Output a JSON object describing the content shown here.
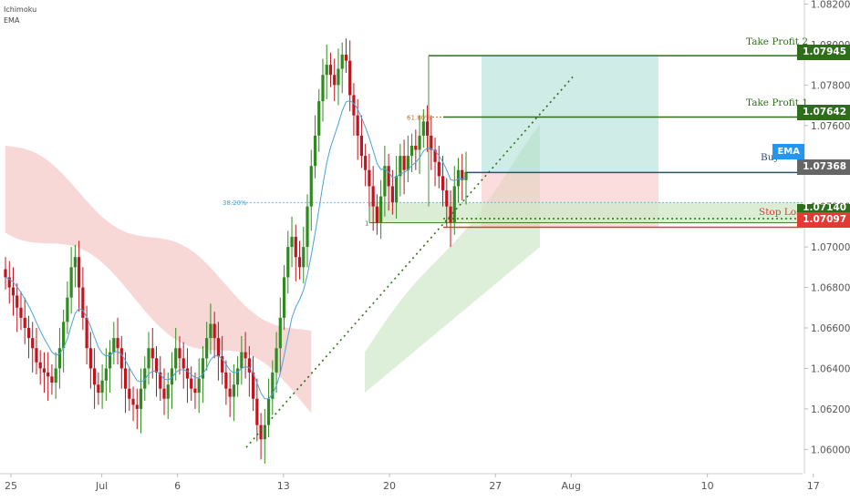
{
  "legend": {
    "ichimoku": "Ichimoku",
    "ema": "EMA"
  },
  "colors": {
    "up": "#2e8b1e",
    "down": "#c0141e",
    "ema": "#4aa3d8",
    "cloud_bear": "#f6c9c9",
    "cloud_bull": "#cfe8c7",
    "tp": "#2e6e1a",
    "buy": "#2c4f7c",
    "sl": "#e53935",
    "profit_zone": "#a7dcd2",
    "loss_zone": "#f8c7c7",
    "trend": "#2e6e1a",
    "axis_text": "#555555"
  },
  "chart_data": {
    "type": "candlestick",
    "y_ticks": [
      "1.08200",
      "1.08000",
      "1.07800",
      "1.07600",
      "1.07400",
      "1.07200",
      "1.07000",
      "1.06800",
      "1.06600",
      "1.06400",
      "1.06200",
      "1.06000"
    ],
    "ylim": [
      1.0588,
      1.0822
    ],
    "x_ticks": [
      {
        "label": "25",
        "day": 0
      },
      {
        "label": "Jul",
        "day": 6
      },
      {
        "label": "6",
        "day": 11
      },
      {
        "label": "13",
        "day": 18
      },
      {
        "label": "20",
        "day": 25
      },
      {
        "label": "27",
        "day": 32
      },
      {
        "label": "Aug",
        "day": 37
      },
      {
        "label": "10",
        "day": 46
      },
      {
        "label": "17",
        "day": 53
      }
    ],
    "candle_closes": [
      1.0685,
      1.068,
      1.0676,
      1.067,
      1.0665,
      1.066,
      1.0655,
      1.065,
      1.0643,
      1.064,
      1.0638,
      1.0636,
      1.0633,
      1.064,
      1.065,
      1.0663,
      1.0675,
      1.069,
      1.0695,
      1.068,
      1.0665,
      1.065,
      1.064,
      1.0632,
      1.0628,
      1.0634,
      1.064,
      1.0648,
      1.0655,
      1.065,
      1.064,
      1.063,
      1.0625,
      1.0622,
      1.062,
      1.063,
      1.064,
      1.065,
      1.0645,
      1.0638,
      1.063,
      1.0625,
      1.0632,
      1.064,
      1.065,
      1.0645,
      1.064,
      1.0635,
      1.063,
      1.0628,
      1.0635,
      1.0645,
      1.0655,
      1.0662,
      1.0655,
      1.0646,
      1.0638,
      1.063,
      1.0626,
      1.0632,
      1.064,
      1.0648,
      1.0645,
      1.0638,
      1.0625,
      1.0612,
      1.0605,
      1.0612,
      1.0625,
      1.0638,
      1.065,
      1.0665,
      1.0685,
      1.07,
      1.0705,
      1.0695,
      1.069,
      1.07,
      1.072,
      1.074,
      1.0755,
      1.0772,
      1.0785,
      1.079,
      1.0785,
      1.078,
      1.0788,
      1.0795,
      1.0792,
      1.0775,
      1.0765,
      1.0755,
      1.0745,
      1.0738,
      1.073,
      1.072,
      1.0712,
      1.0725,
      1.074,
      1.073,
      1.0722,
      1.0735,
      1.0745,
      1.0738,
      1.0745,
      1.075,
      1.0748,
      1.0755,
      1.0762,
      1.0755,
      1.0748,
      1.0742,
      1.0735,
      1.0728,
      1.072,
      1.0712,
      1.073,
      1.0738,
      1.0733,
      1.0737
    ],
    "annotations": {
      "fib_618": "61.80%",
      "fib_382": "38.20%",
      "fib_1": "1"
    },
    "levels": {
      "tp2": {
        "label": "Take Profit 2",
        "value": 1.07945,
        "text": "1.07945"
      },
      "tp1": {
        "label": "Take Profit 1",
        "value": 1.07642,
        "text": "1.07642"
      },
      "buy": {
        "label": "Buy",
        "value": 1.07368,
        "text": "1.07368"
      },
      "sl": {
        "label": "Stop Loss",
        "value": 1.07097,
        "text": "1.07097"
      },
      "extra": {
        "value": 1.0714,
        "text": "1.07140"
      }
    },
    "ema_tag": "EMA"
  }
}
